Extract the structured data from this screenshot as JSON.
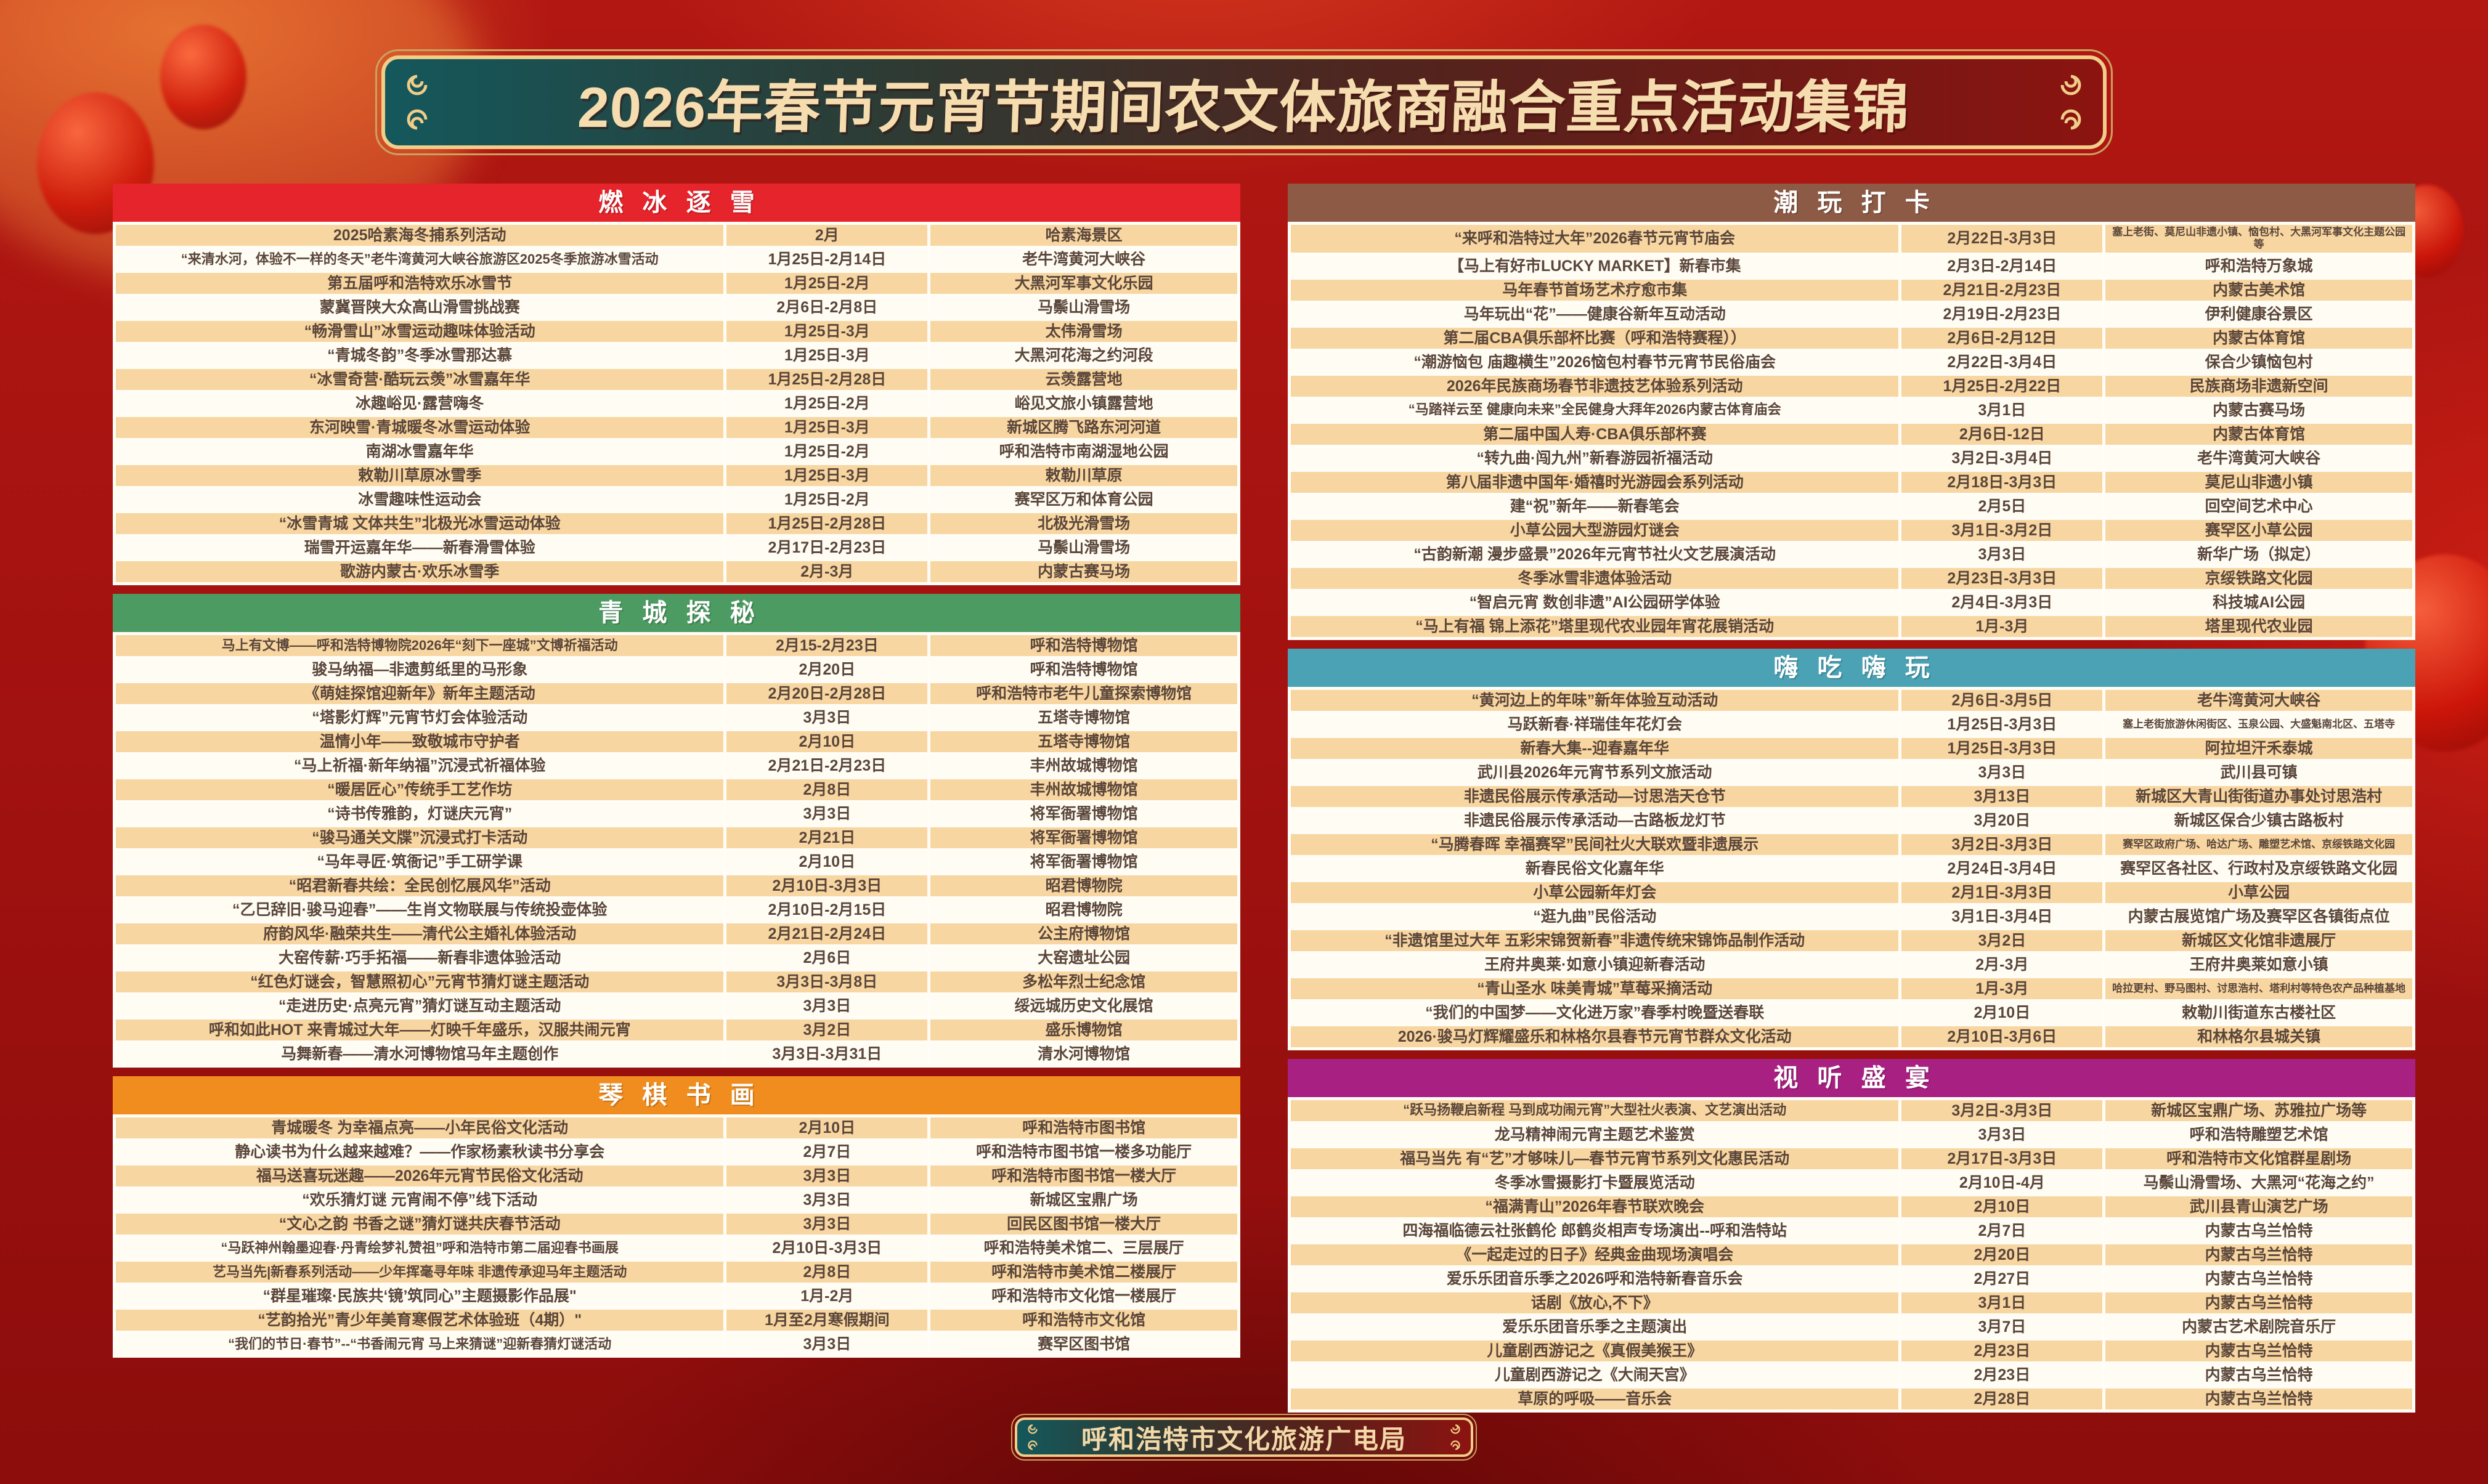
{
  "title": "2026年春节元宵节期间农文体旅商融合重点活动集锦",
  "footer": "呼和浩特市文化旅游广电局",
  "palette": {
    "gold_border": "#f0cd88",
    "row_odd": "#f8d6a1",
    "row_even": "#fffcf4",
    "cell_text": "#5a463a"
  },
  "sections": [
    {
      "id": "ranbingzhuxue",
      "title": "燃冰逐雪",
      "color": "#e6242b",
      "column": "left",
      "rows": [
        [
          "2025哈素海冬捕系列活动",
          "2月",
          "哈素海景区"
        ],
        [
          "“来清水河，体验不一样的冬天”老牛湾黄河大峡谷旅游区2025冬季旅游冰雪活动",
          "1月25日-2月14日",
          "老牛湾黄河大峡谷"
        ],
        [
          "第五届呼和浩特欢乐冰雪节",
          "1月25日-2月",
          "大黑河军事文化乐园"
        ],
        [
          "蒙冀晋陕大众高山滑雪挑战赛",
          "2月6日-2月8日",
          "马鬃山滑雪场"
        ],
        [
          "“畅滑雪山”冰雪运动趣味体验活动",
          "1月25日-3月",
          "太伟滑雪场"
        ],
        [
          "“青城冬韵”冬季冰雪那达慕",
          "1月25日-3月",
          "大黑河花海之约河段"
        ],
        [
          "“冰雪奇营·酷玩云羡”冰雪嘉年华",
          "1月25日-2月28日",
          "云羡露营地"
        ],
        [
          "冰趣峪见·露营嗨冬",
          "1月25日-2月",
          "峪见文旅小镇露营地"
        ],
        [
          "东河映雪·青城暖冬冰雪运动体验",
          "1月25日-3月",
          "新城区腾飞路东河河道"
        ],
        [
          "南湖冰雪嘉年华",
          "1月25日-2月",
          "呼和浩特市南湖湿地公园"
        ],
        [
          "敕勒川草原冰雪季",
          "1月25日-3月",
          "敕勒川草原"
        ],
        [
          "冰雪趣味性运动会",
          "1月25日-2月",
          "赛罕区万和体育公园"
        ],
        [
          "“冰雪青城 文体共生”北极光冰雪运动体验",
          "1月25日-2月28日",
          "北极光滑雪场"
        ],
        [
          "瑞雪开运嘉年华——新春滑雪体验",
          "2月17日-2月23日",
          "马鬃山滑雪场"
        ],
        [
          "歌游内蒙古·欢乐冰雪季",
          "2月-3月",
          "内蒙古赛马场"
        ]
      ]
    },
    {
      "id": "qingchengtanmi",
      "title": "青城探秘",
      "color": "#4c9b62",
      "column": "left",
      "rows": [
        [
          "马上有文博——呼和浩特博物院2026年“刻下一座城”文博祈福活动",
          "2月15-2月23日",
          "呼和浩特博物馆"
        ],
        [
          "骏马纳福—非遗剪纸里的马形象",
          "2月20日",
          "呼和浩特博物馆"
        ],
        [
          "《萌娃探馆迎新年》新年主题活动",
          "2月20日-2月28日",
          "呼和浩特市老牛儿童探索博物馆"
        ],
        [
          "“塔影灯辉”元宵节灯会体验活动",
          "3月3日",
          "五塔寺博物馆"
        ],
        [
          "温情小年——致敬城市守护者",
          "2月10日",
          "五塔寺博物馆"
        ],
        [
          "“马上祈福·新年纳福”沉浸式祈福体验",
          "2月21日-2月23日",
          "丰州故城博物馆"
        ],
        [
          "“暖居匠心”传统手工艺作坊",
          "2月8日",
          "丰州故城博物馆"
        ],
        [
          "“诗书传雅韵，灯谜庆元宵”",
          "3月3日",
          "将军衙署博物馆"
        ],
        [
          "“骏马通关文牒”沉浸式打卡活动",
          "2月21日",
          "将军衙署博物馆"
        ],
        [
          "“马年寻匠·筑衙记”手工研学课",
          "2月10日",
          "将军衙署博物馆"
        ],
        [
          "“昭君新春共绘：全民创忆展风华”活动",
          "2月10日-3月3日",
          "昭君博物院"
        ],
        [
          "“乙巳辞旧·骏马迎春”——生肖文物联展与传统投壶体验",
          "2月10日-2月15日",
          "昭君博物院"
        ],
        [
          "府韵风华·融荣共生——清代公主婚礼体验活动",
          "2月21日-2月24日",
          "公主府博物馆"
        ],
        [
          "大窑传薪·巧手拓福——新春非遗体验活动",
          "2月6日",
          "大窑遗址公园"
        ],
        [
          "“红色灯谜会，智慧照初心”元宵节猜灯谜主题活动",
          "3月3日-3月8日",
          "多松年烈士纪念馆"
        ],
        [
          "“走进历史·点亮元宵”猜灯谜互动主题活动",
          "3月3日",
          "绥远城历史文化展馆"
        ],
        [
          "呼和如此HOT 来青城过大年——灯映千年盛乐，汉服共闹元宵",
          "3月2日",
          "盛乐博物馆"
        ],
        [
          "马舞新春——清水河博物馆马年主题创作",
          "3月3日-3月31日",
          "清水河博物馆"
        ]
      ]
    },
    {
      "id": "qinqishuhua",
      "title": "琴棋书画",
      "color": "#f08d1e",
      "column": "left",
      "rows": [
        [
          "青城暖冬 为幸福点亮——小年民俗文化活动",
          "2月10日",
          "呼和浩特市图书馆"
        ],
        [
          "静心读书为什么越来越难？——作家杨素秋读书分享会",
          "2月7日",
          "呼和浩特市图书馆一楼多功能厅"
        ],
        [
          "福马送喜玩迷趣——2026年元宵节民俗文化活动",
          "3月3日",
          "呼和浩特市图书馆一楼大厅"
        ],
        [
          "“欢乐猜灯谜 元宵闹不停”线下活动",
          "3月3日",
          "新城区宝鼎广场"
        ],
        [
          "“文心之韵 书香之谜”猜灯谜共庆春节活动",
          "3月3日",
          "回民区图书馆一楼大厅"
        ],
        [
          "“马跃神州翰墨迎春·丹青绘梦礼赞祖”呼和浩特市第二届迎春书画展",
          "2月10日-3月3日",
          "呼和浩特美术馆二、三层展厅"
        ],
        [
          "艺马当先|新春系列活动——少年挥毫寻年味 非遗传承迎马年主题活动",
          "2月8日",
          "呼和浩特市美术馆二楼展厅"
        ],
        [
          "“群星璀璨·民族共‘镜’筑同心”主题摄影作品展\"",
          "1月-2月",
          "呼和浩特市文化馆一楼展厅"
        ],
        [
          "“艺韵拾光”青少年美育寒假艺术体验班（4期）\"",
          "1月至2月寒假期间",
          "呼和浩特市文化馆"
        ],
        [
          "“我们的节日·春节”--“书香闹元宵 马上来猜谜”迎新春猜灯谜活动",
          "3月3日",
          "赛罕区图书馆"
        ]
      ]
    },
    {
      "id": "chaowandaka",
      "title": "潮玩打卡",
      "color": "#8d5a45",
      "column": "right",
      "rows": [
        [
          "“来呼和浩特过大年”2026春节元宵节庙会",
          "2月22日-3月3日",
          "塞上老街、莫尼山非遗小镇、恼包村、大黑河军事文化主题公园等"
        ],
        [
          "【马上有好市LUCKY MARKET】新春市集",
          "2月3日-2月14日",
          "呼和浩特万象城"
        ],
        [
          "马年春节首场艺术疗愈市集",
          "2月21日-2月23日",
          "内蒙古美术馆"
        ],
        [
          "马年玩出“花”——健康谷新年互动活动",
          "2月19日-2月23日",
          "伊利健康谷景区"
        ],
        [
          "第二届CBA俱乐部杯比赛（呼和浩特赛程））",
          "2月6日-2月12日",
          "内蒙古体育馆"
        ],
        [
          "“潮游恼包 庙趣横生”2026恼包村春节元宵节民俗庙会",
          "2月22日-3月4日",
          "保合少镇恼包村"
        ],
        [
          "2026年民族商场春节非遗技艺体验系列活动",
          "1月25日-2月22日",
          "民族商场非遗新空间"
        ],
        [
          "“马踏祥云至 健康向未来”全民健身大拜年2026内蒙古体育庙会",
          "3月1日",
          "内蒙古赛马场"
        ],
        [
          "第二届中国人寿·CBA俱乐部杯赛",
          "2月6日-12日",
          "内蒙古体育馆"
        ],
        [
          "“转九曲·闯九州”新春游园祈福活动",
          "3月2日-3月4日",
          "老牛湾黄河大峡谷"
        ],
        [
          "第八届非遗中国年·婚禧时光游园会系列活动",
          "2月18日-3月3日",
          "莫尼山非遗小镇"
        ],
        [
          "建“祝”新年——新春笔会",
          "2月5日",
          "回空间艺术中心"
        ],
        [
          "小草公园大型游园灯谜会",
          "3月1日-3月2日",
          "赛罕区小草公园"
        ],
        [
          "“古韵新潮 漫步盛景”2026年元宵节社火文艺展演活动",
          "3月3日",
          "新华广场（拟定）"
        ],
        [
          "冬季冰雪非遗体验活动",
          "2月23日-3月3日",
          "京绥铁路文化园"
        ],
        [
          "“智启元宵 数创非遗”AI公园研学体验",
          "2月4日-3月3日",
          "科技城AI公园"
        ],
        [
          "“马上有福 锦上添花”塔里现代农业园年宵花展销活动",
          "1月-3月",
          "塔里现代农业园"
        ]
      ]
    },
    {
      "id": "haichihaiwan",
      "title": "嗨吃嗨玩",
      "color": "#4aa2b4",
      "column": "right",
      "rows": [
        [
          "“黄河边上的年味”新年体验互动活动",
          "2月6日-3月5日",
          "老牛湾黄河大峡谷"
        ],
        [
          "马跃新春·祥瑞佳年花灯会",
          "1月25日-3月3日",
          "塞上老街旅游休闲街区、玉泉公园、大盛魁南北区、五塔寺"
        ],
        [
          "新春大集--迎春嘉年华",
          "1月25日-3月3日",
          "阿拉坦汗禾泰城"
        ],
        [
          "武川县2026年元宵节系列文旅活动",
          "3月3日",
          "武川县可镇"
        ],
        [
          "非遗民俗展示传承活动—讨思浩天仓节",
          "3月13日",
          "新城区大青山街街道办事处讨思浩村"
        ],
        [
          "非遗民俗展示传承活动—古路板龙灯节",
          "3月20日",
          "新城区保合少镇古路板村"
        ],
        [
          "“马腾春晖 幸福赛罕”民间社火大联欢暨非遗展示",
          "3月2日-3月3日",
          "赛罕区政府广场、哈达广场、雕塑艺术馆、京绥铁路文化园"
        ],
        [
          "新春民俗文化嘉年华",
          "2月24日-3月4日",
          "赛罕区各社区、行政村及京绥铁路文化园"
        ],
        [
          "小草公园新年灯会",
          "2月1日-3月3日",
          "小草公园"
        ],
        [
          "“逛九曲”民俗活动",
          "3月1日-3月4日",
          "内蒙古展览馆广场及赛罕区各镇街点位"
        ],
        [
          "“非遗馆里过大年 五彩宋锦贺新春”非遗传统宋锦饰品制作活动",
          "3月2日",
          "新城区文化馆非遗展厅"
        ],
        [
          "王府井奥莱·如意小镇迎新春活动",
          "2月-3月",
          "王府井奥莱如意小镇"
        ],
        [
          "“青山圣水 味美青城”草莓采摘活动",
          "1月-3月",
          "哈拉更村、野马图村、讨思浩村、塔利村等特色农产品种植基地"
        ],
        [
          "“我们的中国梦——文化进万家”春季村晚暨送春联",
          "2月10日",
          "敕勒川街道东古楼社区"
        ],
        [
          "2026·骏马灯辉耀盛乐和林格尔县春节元宵节群众文化活动",
          "2月10日-3月6日",
          "和林格尔县城关镇"
        ]
      ]
    },
    {
      "id": "shitingshengyan",
      "title": "视听盛宴",
      "color": "#a82082",
      "column": "right",
      "rows": [
        [
          "“跃马扬鞭启新程 马到成功闹元宵”大型社火表演、文艺演出活动",
          "3月2日-3月3日",
          "新城区宝鼎广场、苏雅拉广场等"
        ],
        [
          "龙马精神闹元宵主题艺术鉴赏",
          "3月3日",
          "呼和浩特雕塑艺术馆"
        ],
        [
          "福马当先 有“艺”才够味儿—春节元宵节系列文化惠民活动",
          "2月17日-3月3日",
          "呼和浩特市文化馆群星剧场"
        ],
        [
          "冬季冰雪摄影打卡暨展览活动",
          "2月10日-4月",
          "马鬃山滑雪场、大黑河“花海之约”"
        ],
        [
          "“福满青山”2026年春节联欢晚会",
          "2月10日",
          "武川县青山演艺广场"
        ],
        [
          "四海福临德云社张鹤伦 郎鹤炎相声专场演出--呼和浩特站",
          "2月7日",
          "内蒙古乌兰恰特"
        ],
        [
          "《一起走过的日子》经典金曲现场演唱会",
          "2月20日",
          "内蒙古乌兰恰特"
        ],
        [
          "爱乐乐团音乐季之2026呼和浩特新春音乐会",
          "2月27日",
          "内蒙古乌兰恰特"
        ],
        [
          "话剧《放心,不下》",
          "3月1日",
          "内蒙古乌兰恰特"
        ],
        [
          "爱乐乐团音乐季之主题演出",
          "3月7日",
          "内蒙古艺术剧院音乐厅"
        ],
        [
          "儿童剧西游记之《真假美猴王》",
          "2月23日",
          "内蒙古乌兰恰特"
        ],
        [
          "儿童剧西游记之《大闹天宫》",
          "2月23日",
          "内蒙古乌兰恰特"
        ],
        [
          "草原的呼吸——音乐会",
          "2月28日",
          "内蒙古乌兰恰特"
        ]
      ]
    }
  ]
}
